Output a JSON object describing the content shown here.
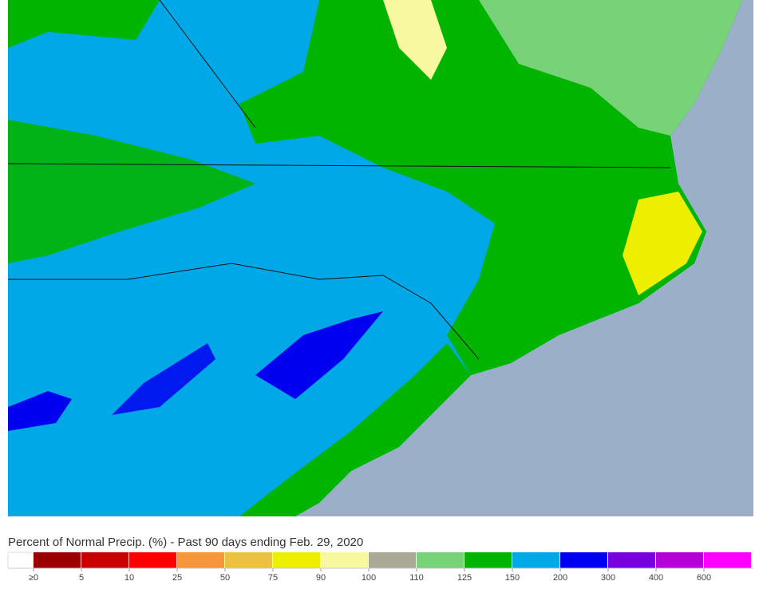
{
  "legend": {
    "title": "Percent of Normal Precip. (%) - Past 90 days ending Feb. 29, 2020",
    "items": [
      {
        "label": "≥0",
        "color": "#9b0000"
      },
      {
        "label": "5",
        "color": "#c80000"
      },
      {
        "label": "10",
        "color": "#ff0000"
      },
      {
        "label": "25",
        "color": "#f7963a"
      },
      {
        "label": "50",
        "color": "#ecc040"
      },
      {
        "label": "75",
        "color": "#eeee00"
      },
      {
        "label": "90",
        "color": "#f8f8a0"
      },
      {
        "label": "100",
        "color": "#a9a996"
      },
      {
        "label": "110",
        "color": "#78d278"
      },
      {
        "label": "125",
        "color": "#00b400"
      },
      {
        "label": "150",
        "color": "#00a8e8"
      },
      {
        "label": "200",
        "color": "#0000f0"
      },
      {
        "label": "300",
        "color": "#7800dc"
      },
      {
        "label": "400",
        "color": "#b400d2"
      },
      {
        "label": "600",
        "color": "#ff00ff"
      }
    ]
  }
}
